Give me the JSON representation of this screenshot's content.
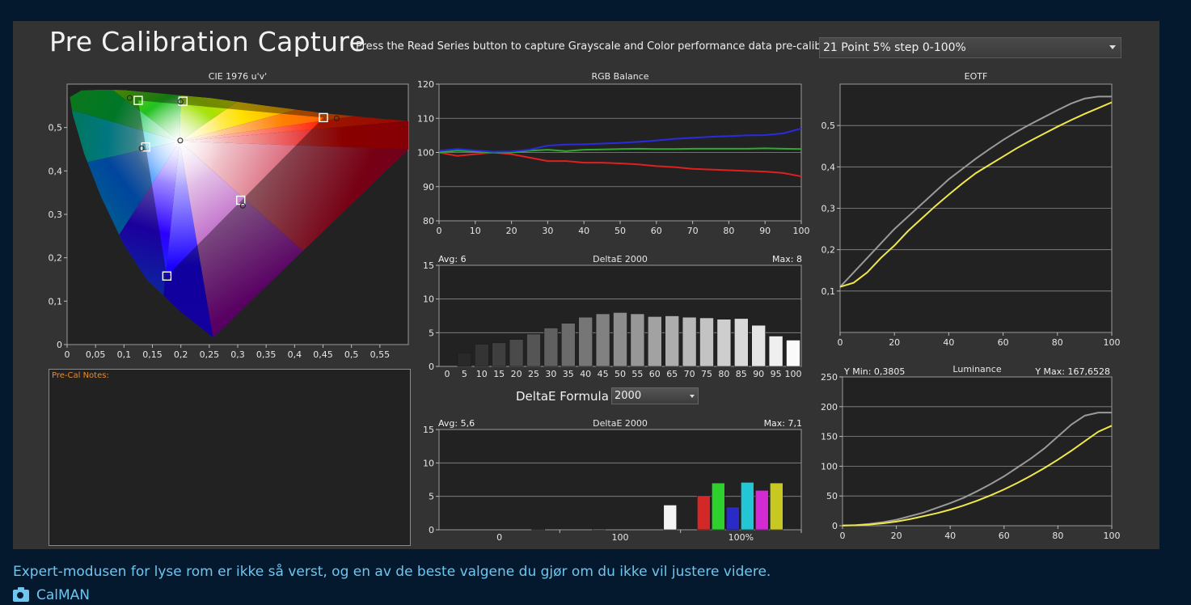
{
  "panel": {
    "title": "Pre Calibration Capture",
    "instruction": "Press the Read Series button to capture Grayscale and Color performance data pre-calibration.",
    "series_dropdown": "21 Point 5% step 0-100%",
    "notes_label": "Pre-Cal Notes:",
    "formula_label": "DeltaE Formula",
    "formula_value": "2000"
  },
  "caption": "Expert-modusen for lyse rom er ikke så verst, og en av de beste valgene du gjør om du ikke vil justere videre.",
  "credit": "CalMAN",
  "chart_data": [
    {
      "id": "cie",
      "type": "scatter",
      "title": "CIE 1976 u'v'",
      "xlim": [
        0,
        0.6
      ],
      "ylim": [
        0,
        0.6
      ],
      "xticks": [
        "0",
        "0,05",
        "0,1",
        "0,15",
        "0,2",
        "0,25",
        "0,3",
        "0,35",
        "0,4",
        "0,45",
        "0,5",
        "0,55"
      ],
      "xtick_values": [
        0,
        0.05,
        0.1,
        0.15,
        0.2,
        0.25,
        0.3,
        0.35,
        0.4,
        0.45,
        0.5,
        0.55
      ],
      "yticks": [
        "0",
        "0,1",
        "0,2",
        "0,3",
        "0,4",
        "0,5"
      ],
      "ytick_values": [
        0,
        0.1,
        0.2,
        0.3,
        0.4,
        0.5
      ],
      "gamut": [
        [
          0.4507,
          0.5229
        ],
        [
          0.125,
          0.5625
        ],
        [
          0.1754,
          0.1579
        ]
      ],
      "targets": [
        [
          0.4507,
          0.5229
        ],
        [
          0.125,
          0.5625
        ],
        [
          0.1754,
          0.1579
        ],
        [
          0.1978,
          0.4683
        ],
        [
          0.1383,
          0.4553
        ],
        [
          0.3053,
          0.3325
        ],
        [
          0.2037,
          0.5607
        ]
      ],
      "measured": [
        [
          0.474,
          0.521
        ],
        [
          0.11,
          0.568
        ],
        [
          0.177,
          0.156
        ],
        [
          0.199,
          0.47
        ],
        [
          0.131,
          0.452
        ],
        [
          0.309,
          0.32
        ],
        [
          0.1995,
          0.5595
        ]
      ]
    },
    {
      "id": "rgb",
      "type": "line",
      "title": "RGB Balance",
      "xlim": [
        0,
        100
      ],
      "ylim": [
        80,
        120
      ],
      "xticks": [
        "0",
        "10",
        "20",
        "30",
        "40",
        "50",
        "60",
        "70",
        "80",
        "90",
        "100"
      ],
      "yticks": [
        "80",
        "90",
        "100",
        "110",
        "120"
      ],
      "x": [
        0,
        5,
        10,
        15,
        20,
        25,
        30,
        35,
        40,
        45,
        50,
        55,
        60,
        65,
        70,
        75,
        80,
        85,
        90,
        95,
        100
      ],
      "series": [
        {
          "color": "#e02020",
          "values": [
            100,
            99,
            99.5,
            100,
            99.5,
            98.5,
            97.5,
            97.5,
            97,
            97,
            96.8,
            96.5,
            96,
            95.7,
            95.2,
            95,
            94.8,
            94.6,
            94.4,
            94,
            93
          ]
        },
        {
          "color": "#2faa2f",
          "values": [
            100,
            100.5,
            100.3,
            100,
            100,
            100.5,
            100.8,
            100.4,
            100.8,
            100.9,
            101,
            101.1,
            101,
            101,
            101.1,
            101.1,
            101.1,
            101.1,
            101.2,
            101.1,
            101
          ]
        },
        {
          "color": "#2a2ae0",
          "values": [
            100.5,
            101,
            100.6,
            100.2,
            100.3,
            100.8,
            102,
            102.3,
            102.4,
            102.6,
            102.8,
            103.1,
            103.5,
            104,
            104.3,
            104.6,
            104.8,
            105,
            105.1,
            105.6,
            107
          ]
        }
      ]
    },
    {
      "id": "gray-de",
      "type": "bar",
      "title": "DeltaE 2000",
      "avg_label": "Avg: 6",
      "max_label": "Max: 8",
      "ylim": [
        0,
        15
      ],
      "yticks": [
        "0",
        "5",
        "10",
        "15"
      ],
      "categories": [
        "0",
        "5",
        "10",
        "15",
        "20",
        "25",
        "30",
        "35",
        "40",
        "45",
        "50",
        "55",
        "60",
        "65",
        "70",
        "75",
        "80",
        "85",
        "90",
        "95",
        "100"
      ],
      "values": [
        0,
        2,
        3.3,
        3.5,
        4,
        4.8,
        5.7,
        6.4,
        7.3,
        7.8,
        8,
        7.8,
        7.4,
        7.5,
        7.3,
        7.2,
        7,
        7.1,
        6.1,
        4.5,
        3.9
      ]
    },
    {
      "id": "color-de",
      "type": "bar",
      "title": "DeltaE 2000",
      "avg_label": "Avg: 5,6",
      "max_label": "Max: 7,1",
      "ylim": [
        0,
        15
      ],
      "yticks": [
        "0",
        "5",
        "10",
        "15"
      ],
      "xticks": [
        "0",
        "100",
        "100%"
      ],
      "bars": [
        {
          "group": 0,
          "value": 0.05,
          "color": "#7a7a7a"
        },
        {
          "group": 0.5,
          "value": 0.15,
          "color": "#7a7a7a"
        },
        {
          "group": 1,
          "value": 3.7,
          "color": "#f4f4f4"
        },
        {
          "group": 2,
          "value": 5.1,
          "color": "#d22828"
        },
        {
          "group": 2,
          "value": 7.0,
          "color": "#2ed02e"
        },
        {
          "group": 2,
          "value": 3.4,
          "color": "#2a2ac8"
        },
        {
          "group": 2,
          "value": 7.1,
          "color": "#23c6d4"
        },
        {
          "group": 2,
          "value": 5.9,
          "color": "#d42ad4"
        },
        {
          "group": 2,
          "value": 7.0,
          "color": "#c8c823"
        }
      ]
    },
    {
      "id": "eotf",
      "type": "line",
      "title": "EOTF",
      "xlim": [
        0,
        100
      ],
      "ylim": [
        0,
        0.6
      ],
      "xticks": [
        "0",
        "20",
        "40",
        "60",
        "80",
        "100"
      ],
      "yticks": [
        "0,1",
        "0,2",
        "0,3",
        "0,4",
        "0,5"
      ],
      "ytick_values": [
        0.1,
        0.2,
        0.3,
        0.4,
        0.5
      ],
      "x": [
        0,
        5,
        10,
        15,
        20,
        25,
        30,
        35,
        40,
        45,
        50,
        55,
        60,
        65,
        70,
        75,
        80,
        85,
        90,
        95,
        100
      ],
      "series": [
        {
          "color": "#9a9a9a",
          "values": [
            0.11,
            0.145,
            0.18,
            0.215,
            0.25,
            0.28,
            0.31,
            0.34,
            0.37,
            0.395,
            0.42,
            0.443,
            0.465,
            0.485,
            0.503,
            0.52,
            0.537,
            0.553,
            0.565,
            0.57,
            0.57
          ]
        },
        {
          "color": "#f0e84a",
          "values": [
            0.11,
            0.12,
            0.145,
            0.18,
            0.21,
            0.245,
            0.275,
            0.305,
            0.333,
            0.36,
            0.385,
            0.405,
            0.425,
            0.445,
            0.463,
            0.48,
            0.497,
            0.513,
            0.528,
            0.542,
            0.556
          ]
        }
      ]
    },
    {
      "id": "luminance",
      "type": "line",
      "title": "Luminance",
      "ymin_label": "Y Min: 0,3805",
      "ymax_label": "Y Max: 167,6528",
      "xlim": [
        0,
        100
      ],
      "ylim": [
        0,
        250
      ],
      "xticks": [
        "0",
        "20",
        "40",
        "60",
        "80",
        "100"
      ],
      "yticks": [
        "0",
        "50",
        "100",
        "150",
        "200",
        "250"
      ],
      "x": [
        0,
        5,
        10,
        15,
        20,
        25,
        30,
        35,
        40,
        45,
        50,
        55,
        60,
        65,
        70,
        75,
        80,
        85,
        90,
        95,
        100
      ],
      "series": [
        {
          "color": "#9a9a9a",
          "values": [
            0.4,
            1,
            3,
            6,
            10,
            16,
            22,
            30,
            38,
            47,
            58,
            70,
            83,
            98,
            113,
            130,
            150,
            170,
            185,
            190,
            190
          ]
        },
        {
          "color": "#f0e84a",
          "values": [
            0.4,
            0.8,
            2,
            4,
            7,
            11,
            16,
            21,
            27,
            34,
            42,
            51,
            61,
            72,
            84,
            97,
            111,
            126,
            142,
            158,
            168
          ]
        }
      ]
    }
  ]
}
